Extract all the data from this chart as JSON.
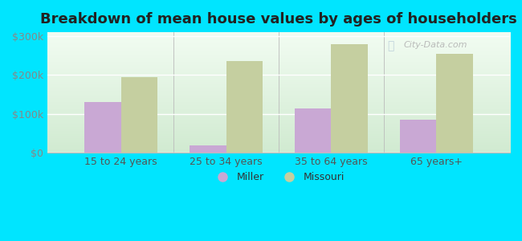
{
  "categories": [
    "15 to 24 years",
    "25 to 34 years",
    "35 to 64 years",
    "65 years+"
  ],
  "miller_values": [
    130000,
    20000,
    115000,
    85000
  ],
  "missouri_values": [
    195000,
    235000,
    280000,
    255000
  ],
  "miller_color": "#c9a8d4",
  "missouri_color": "#c5cfa0",
  "title": "Breakdown of mean house values by ages of householders",
  "title_fontsize": 13,
  "ylabel_ticks": [
    "$0",
    "$100k",
    "$200k",
    "$300k"
  ],
  "ytick_values": [
    0,
    100000,
    200000,
    300000
  ],
  "ylim": [
    0,
    310000
  ],
  "bg_top_color": "#f0faf0",
  "bg_bottom_color": "#d4ecd4",
  "outer_background": "#00e5ff",
  "legend_labels": [
    "Miller",
    "Missouri"
  ],
  "watermark": "City-Data.com",
  "bar_width": 0.35
}
